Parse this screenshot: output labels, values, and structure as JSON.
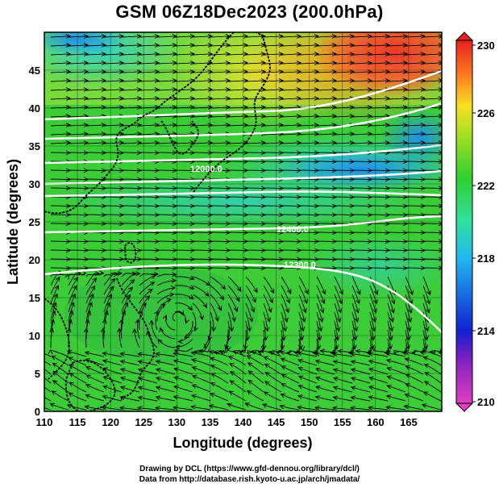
{
  "title": "GSM 06Z18Dec2023 (200.0hPa)",
  "xlabel": "Longitude (degrees)",
  "ylabel": "Latitude  (degrees)",
  "x_ticks": [
    "110",
    "115",
    "120",
    "125",
    "130",
    "135",
    "140",
    "145",
    "150",
    "155",
    "160",
    "165"
  ],
  "y_ticks": [
    "0",
    "5",
    "10",
    "15",
    "20",
    "25",
    "30",
    "35",
    "40",
    "45"
  ],
  "colorbar": {
    "ticks": [
      "210",
      "214",
      "218",
      "222",
      "226",
      "230"
    ],
    "colors": [
      "#e040c0",
      "#1030d0",
      "#20b0f0",
      "#30d840",
      "#f0e020",
      "#ff7020",
      "#e83020"
    ]
  },
  "contour_labels": [
    "12400.0",
    "12300.0",
    "12000.0"
  ],
  "credits": {
    "line1": "Drawing by DCL (https://www.gfd-dennou.org/library/dcl/)",
    "line2": "Data from http://database.rish.kyoto-u.ac.jp/arch/jmadata/"
  },
  "chart_data": {
    "type": "heatmap",
    "title": "GSM 06Z18Dec2023 (200.0hPa)",
    "xlabel": "Longitude (degrees)",
    "ylabel": "Latitude  (degrees)",
    "xlim": [
      110,
      170
    ],
    "ylim": [
      0,
      50
    ],
    "colorbar_range": [
      210,
      230
    ],
    "fields": [
      "temperature (shaded)",
      "geopotential height (white contours)",
      "wind (streamlines)"
    ]
  }
}
